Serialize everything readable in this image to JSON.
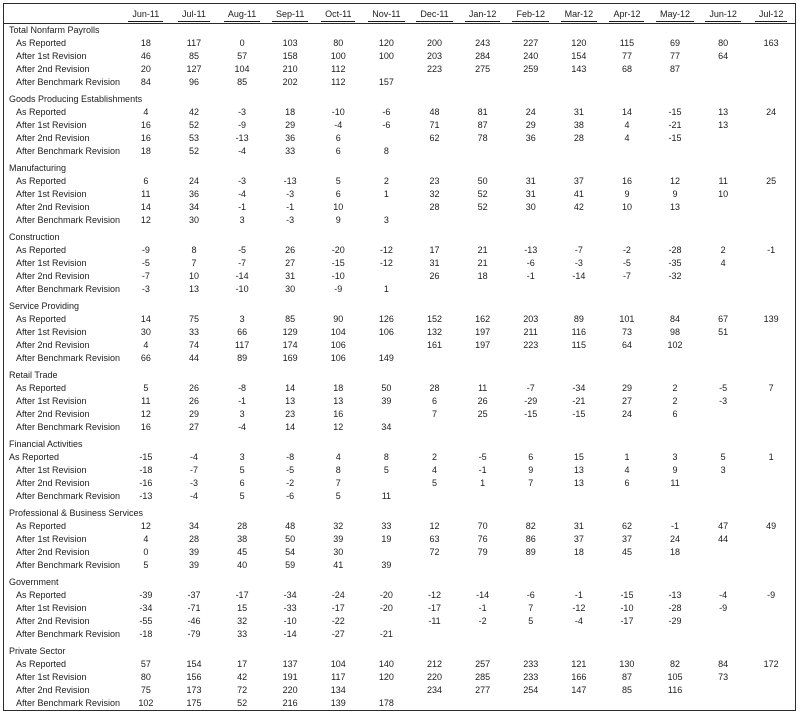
{
  "table": {
    "months": [
      "Jun-11",
      "Jul-11",
      "Aug-11",
      "Sep-11",
      "Oct-11",
      "Nov-11",
      "Dec-11",
      "Jan-12",
      "Feb-12",
      "Mar-12",
      "Apr-12",
      "May-12",
      "Jun-12",
      "Jul-12"
    ],
    "row_labels": [
      "As Reported",
      "After 1st Revision",
      "After 2nd Revision",
      "After Benchmark Revision"
    ],
    "sections": [
      {
        "name": "Total Nonfarm Payrolls",
        "rows": [
          [
            18,
            117,
            0,
            103,
            80,
            120,
            200,
            243,
            227,
            120,
            115,
            69,
            80,
            163
          ],
          [
            46,
            85,
            57,
            158,
            100,
            100,
            203,
            284,
            240,
            154,
            77,
            77,
            64,
            null
          ],
          [
            20,
            127,
            104,
            210,
            112,
            null,
            223,
            275,
            259,
            143,
            68,
            87,
            null,
            null
          ],
          [
            84,
            96,
            85,
            202,
            112,
            157,
            null,
            null,
            null,
            null,
            null,
            null,
            null,
            null
          ]
        ]
      },
      {
        "name": "Goods Producing Establishments",
        "rows": [
          [
            4,
            42,
            -3,
            18,
            -10,
            -6,
            48,
            81,
            24,
            31,
            14,
            -15,
            13,
            24
          ],
          [
            16,
            52,
            -9,
            29,
            -4,
            -6,
            71,
            87,
            29,
            38,
            4,
            -21,
            13,
            null
          ],
          [
            16,
            53,
            -13,
            36,
            6,
            null,
            62,
            78,
            36,
            28,
            4,
            -15,
            null,
            null
          ],
          [
            18,
            52,
            -4,
            33,
            6,
            8,
            null,
            null,
            null,
            null,
            null,
            null,
            null,
            null
          ]
        ]
      },
      {
        "name": "Manufacturing",
        "rows": [
          [
            6,
            24,
            -3,
            -13,
            5,
            2,
            23,
            50,
            31,
            37,
            16,
            12,
            11,
            25
          ],
          [
            11,
            36,
            -4,
            -3,
            6,
            1,
            32,
            52,
            31,
            41,
            9,
            9,
            10,
            null
          ],
          [
            14,
            34,
            -1,
            -1,
            10,
            null,
            28,
            52,
            30,
            42,
            10,
            13,
            null,
            null
          ],
          [
            12,
            30,
            3,
            -3,
            9,
            3,
            null,
            null,
            null,
            null,
            null,
            null,
            null,
            null
          ]
        ]
      },
      {
        "name": "Construction",
        "rows": [
          [
            -9,
            8,
            -5,
            26,
            -20,
            -12,
            17,
            21,
            -13,
            -7,
            -2,
            -28,
            2,
            -1
          ],
          [
            -5,
            7,
            -7,
            27,
            -15,
            -12,
            31,
            21,
            -6,
            -3,
            -5,
            -35,
            4,
            null
          ],
          [
            -7,
            10,
            -14,
            31,
            -10,
            null,
            26,
            18,
            -1,
            -14,
            -7,
            -32,
            null,
            null
          ],
          [
            -3,
            13,
            -10,
            30,
            -9,
            1,
            null,
            null,
            null,
            null,
            null,
            null,
            null,
            null
          ]
        ]
      },
      {
        "name": "Service Providing",
        "rows": [
          [
            14,
            75,
            3,
            85,
            90,
            126,
            152,
            162,
            203,
            89,
            101,
            84,
            67,
            139
          ],
          [
            30,
            33,
            66,
            129,
            104,
            106,
            132,
            197,
            211,
            116,
            73,
            98,
            51,
            null
          ],
          [
            4,
            74,
            117,
            174,
            106,
            null,
            161,
            197,
            223,
            115,
            64,
            102,
            null,
            null
          ],
          [
            66,
            44,
            89,
            169,
            106,
            149,
            null,
            null,
            null,
            null,
            null,
            null,
            null,
            null
          ]
        ]
      },
      {
        "name": "Retail Trade",
        "rows": [
          [
            5,
            26,
            -8,
            14,
            18,
            50,
            28,
            11,
            -7,
            -34,
            29,
            2,
            -5,
            7
          ],
          [
            11,
            26,
            -1,
            13,
            13,
            39,
            6,
            26,
            -29,
            -21,
            27,
            2,
            -3,
            null
          ],
          [
            12,
            29,
            3,
            23,
            16,
            null,
            7,
            25,
            -15,
            -15,
            24,
            6,
            null,
            null
          ],
          [
            16,
            27,
            -4,
            14,
            12,
            34,
            null,
            null,
            null,
            null,
            null,
            null,
            null,
            null
          ]
        ]
      },
      {
        "name": "Financial Activities",
        "flush_first_row": true,
        "rows": [
          [
            -15,
            -4,
            3,
            -8,
            4,
            8,
            2,
            -5,
            6,
            15,
            1,
            3,
            5,
            1
          ],
          [
            -18,
            -7,
            5,
            -5,
            8,
            5,
            4,
            -1,
            9,
            13,
            4,
            9,
            3,
            null
          ],
          [
            -16,
            -3,
            6,
            -2,
            7,
            null,
            5,
            1,
            7,
            13,
            6,
            11,
            null,
            null
          ],
          [
            -13,
            -4,
            5,
            -6,
            5,
            11,
            null,
            null,
            null,
            null,
            null,
            null,
            null,
            null
          ]
        ]
      },
      {
        "name": "Professional & Business Services",
        "rows": [
          [
            12,
            34,
            28,
            48,
            32,
            33,
            12,
            70,
            82,
            31,
            62,
            -1,
            47,
            49
          ],
          [
            4,
            28,
            38,
            50,
            39,
            19,
            63,
            76,
            86,
            37,
            37,
            24,
            44,
            null
          ],
          [
            0,
            39,
            45,
            54,
            30,
            null,
            72,
            79,
            89,
            18,
            45,
            18,
            null,
            null
          ],
          [
            5,
            39,
            40,
            59,
            41,
            39,
            null,
            null,
            null,
            null,
            null,
            null,
            null,
            null
          ]
        ]
      },
      {
        "name": "Government",
        "rows": [
          [
            -39,
            -37,
            -17,
            -34,
            -24,
            -20,
            -12,
            -14,
            -6,
            -1,
            -15,
            -13,
            -4,
            -9
          ],
          [
            -34,
            -71,
            15,
            -33,
            -17,
            -20,
            -17,
            -1,
            7,
            -12,
            -10,
            -28,
            -9,
            null
          ],
          [
            -55,
            -46,
            32,
            -10,
            -22,
            null,
            -11,
            -2,
            5,
            -4,
            -17,
            -29,
            null,
            null
          ],
          [
            -18,
            -79,
            33,
            -14,
            -27,
            -21,
            null,
            null,
            null,
            null,
            null,
            null,
            null,
            null
          ]
        ]
      },
      {
        "name": "Private Sector",
        "rows": [
          [
            57,
            154,
            17,
            137,
            104,
            140,
            212,
            257,
            233,
            121,
            130,
            82,
            84,
            172
          ],
          [
            80,
            156,
            42,
            191,
            117,
            120,
            220,
            285,
            233,
            166,
            87,
            105,
            73,
            null
          ],
          [
            75,
            173,
            72,
            220,
            134,
            null,
            234,
            277,
            254,
            147,
            85,
            116,
            null,
            null
          ],
          [
            102,
            175,
            52,
            216,
            139,
            178,
            null,
            null,
            null,
            null,
            null,
            null,
            null,
            null
          ]
        ]
      }
    ]
  }
}
